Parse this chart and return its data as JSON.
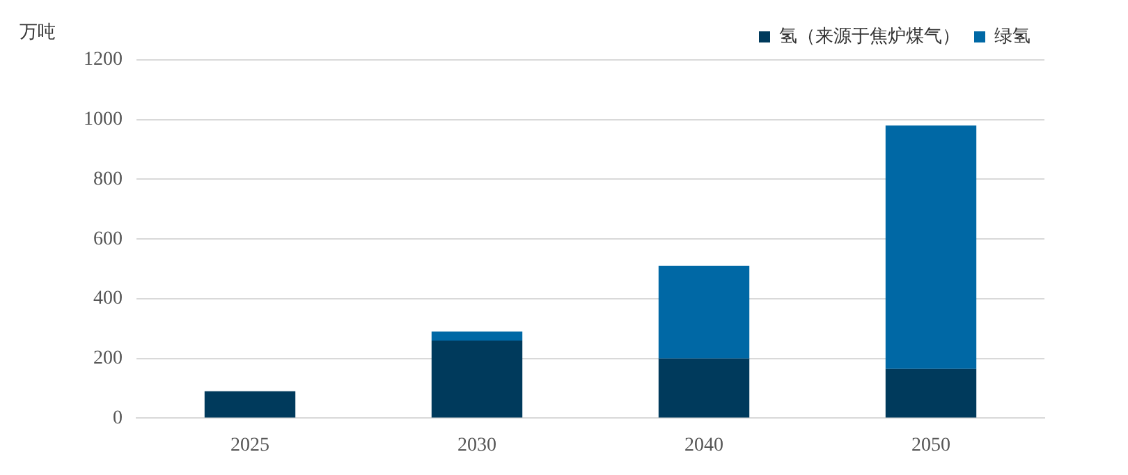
{
  "chart_data": {
    "type": "bar",
    "stacked": true,
    "ylabel": "万吨",
    "categories": [
      "2025",
      "2030",
      "2040",
      "2050"
    ],
    "series": [
      {
        "name": "氢（来源于焦炉煤气）",
        "color": "#003a5c",
        "values": [
          90,
          260,
          200,
          165
        ]
      },
      {
        "name": "绿氢",
        "color": "#0068a5",
        "values": [
          null,
          30,
          310,
          815
        ]
      }
    ],
    "ylim": [
      0,
      1200
    ],
    "yticks": [
      0,
      200,
      400,
      600,
      800,
      1000,
      1200
    ],
    "grid": "y",
    "legend": "top right"
  }
}
